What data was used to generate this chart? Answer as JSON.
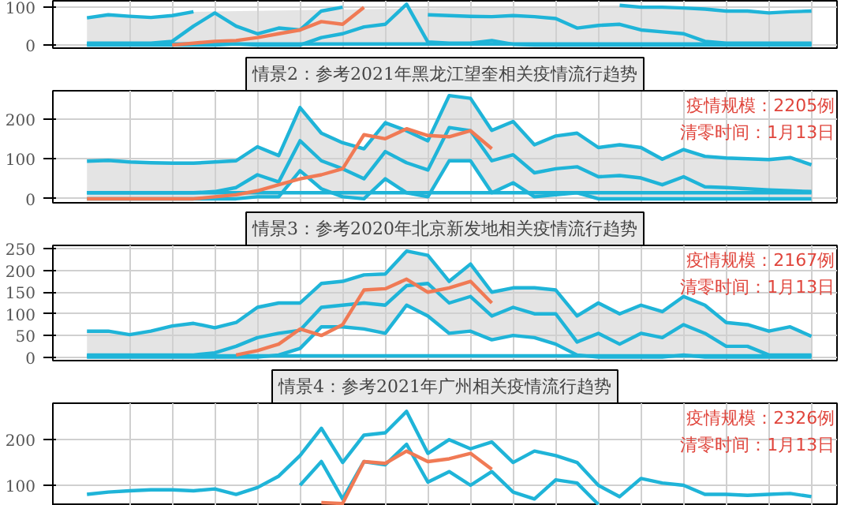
{
  "chart_data": [
    {
      "type": "line",
      "categories": [
        null,
        null,
        null,
        null,
        null,
        null,
        null,
        null,
        null,
        null,
        null,
        null,
        null,
        null,
        null,
        null,
        null,
        null,
        null,
        null,
        null,
        null,
        null,
        null,
        null,
        null,
        null,
        null,
        null,
        null,
        null,
        null,
        null,
        null,
        null
      ],
      "ylim": [
        -8,
        117
      ],
      "yticks": [
        0,
        100
      ],
      "grid": true,
      "tick_labels": "y",
      "series": [
        {
          "color": "#1fb4d8",
          "values": [
            3,
            3,
            3,
            3,
            3,
            3,
            3,
            3,
            3,
            3,
            3,
            3,
            3,
            3,
            3,
            3,
            3,
            3,
            3,
            3,
            3,
            3,
            3,
            3,
            3,
            3,
            3,
            3,
            3,
            3,
            3,
            3,
            3,
            3,
            3
          ]
        },
        {
          "color": "#1fb4d8",
          "values": [
            72,
            80,
            76,
            73,
            78,
            88,
            null,
            null,
            null,
            null,
            null,
            null,
            null,
            null,
            null,
            null,
            null,
            null,
            null,
            null,
            null,
            null,
            null,
            null,
            null,
            105,
            100,
            100,
            98,
            95,
            90,
            90,
            85,
            88,
            90
          ]
        },
        {
          "color": "#1fb4d8",
          "values": [
            0,
            0,
            0,
            0,
            0,
            0,
            0,
            3,
            0,
            0,
            0,
            20,
            30,
            48,
            55,
            108,
            8,
            5,
            5,
            12,
            2,
            0,
            0,
            0,
            0,
            0,
            0,
            0,
            0,
            0,
            0,
            0,
            0,
            0,
            0
          ]
        },
        {
          "color": "#1fb4d8",
          "values": [
            5,
            5,
            5,
            5,
            10,
            50,
            85,
            50,
            30,
            45,
            40,
            90,
            100,
            null,
            null,
            null,
            80,
            78,
            76,
            75,
            78,
            75,
            70,
            45,
            52,
            55,
            40,
            35,
            30,
            10,
            5,
            5,
            5,
            5,
            5
          ],
          "lower": [
            0,
            0,
            0,
            0,
            0,
            0,
            null,
            null,
            null,
            null,
            null,
            null,
            null,
            null,
            null,
            null,
            null,
            null,
            null,
            null,
            null,
            null,
            null,
            null,
            null,
            0,
            0,
            0,
            0,
            0,
            0,
            0,
            0,
            0,
            0
          ],
          "upper": [
            72,
            80,
            76,
            73,
            78,
            88,
            null,
            null,
            null,
            null,
            null,
            null,
            null,
            null,
            null,
            null,
            null,
            null,
            null,
            null,
            null,
            null,
            null,
            null,
            null,
            105,
            100,
            100,
            98,
            95,
            90,
            90,
            85,
            88,
            90
          ]
        },
        {
          "color": "#f07a55",
          "values": [
            null,
            null,
            null,
            null,
            0,
            5,
            10,
            12,
            20,
            30,
            40,
            62,
            55,
            100,
            null,
            null,
            null,
            null,
            null,
            null,
            null,
            null,
            null,
            null,
            null,
            null,
            null,
            null,
            null,
            null,
            null,
            null,
            null,
            null,
            null
          ]
        }
      ]
    },
    {
      "type": "line",
      "title": "情景2：参考2021年黑龙江望奎相关疫情流行趋势",
      "categories": [
        null,
        null,
        null,
        null,
        null,
        null,
        null,
        null,
        null,
        null,
        null,
        null,
        null,
        null,
        null,
        null,
        null,
        null,
        null,
        null,
        null,
        null,
        null,
        null,
        null,
        null,
        null,
        null,
        null,
        null,
        null,
        null,
        null,
        null,
        null
      ],
      "ylim": [
        -10,
        270
      ],
      "yticks": [
        0,
        100,
        200
      ],
      "grid": true,
      "tick_labels": "y",
      "annotations": [
        "疫情规模：2205例",
        "清零时间：1月13日"
      ],
      "series": [
        {
          "color": "#1fb4d8",
          "values": [
            15,
            15,
            15,
            15,
            15,
            15,
            15,
            15,
            15,
            15,
            15,
            15,
            15,
            15,
            15,
            15,
            15,
            15,
            15,
            15,
            15,
            15,
            15,
            15,
            15,
            15,
            15,
            15,
            15,
            15,
            15,
            15,
            15,
            15,
            15
          ]
        },
        {
          "color": "#1fb4d8",
          "values": [
            94,
            96,
            92,
            90,
            89,
            89,
            92,
            95,
            130,
            108,
            228,
            164,
            140,
            125,
            190,
            170,
            145,
            258,
            251,
            171,
            193,
            135,
            157,
            164,
            128,
            135,
            128,
            99,
            123,
            106,
            102,
            100,
            98,
            103,
            85
          ]
        },
        {
          "color": "#1fb4d8",
          "values": [
            0,
            0,
            0,
            0,
            0,
            0,
            0,
            0,
            5,
            5,
            70,
            25,
            5,
            0,
            50,
            15,
            5,
            95,
            95,
            15,
            40,
            5,
            10,
            15,
            0,
            0,
            0,
            0,
            0,
            0,
            0,
            0,
            0,
            0,
            0
          ]
        },
        {
          "color": "#1fb4d8",
          "values": [
            15,
            15,
            15,
            15,
            15,
            15,
            18,
            28,
            60,
            42,
            145,
            95,
            75,
            50,
            118,
            90,
            72,
            178,
            170,
            95,
            110,
            65,
            75,
            80,
            55,
            58,
            52,
            35,
            55,
            30,
            28,
            25,
            22,
            20,
            18
          ],
          "lower": [
            0,
            0,
            0,
            0,
            0,
            0,
            0,
            0,
            5,
            5,
            70,
            25,
            5,
            0,
            50,
            15,
            5,
            95,
            95,
            15,
            40,
            5,
            10,
            15,
            0,
            0,
            0,
            0,
            0,
            0,
            0,
            0,
            0,
            0,
            0
          ],
          "upper": [
            94,
            96,
            92,
            90,
            89,
            89,
            92,
            95,
            130,
            108,
            228,
            164,
            140,
            125,
            190,
            170,
            145,
            258,
            251,
            171,
            193,
            135,
            157,
            164,
            128,
            135,
            128,
            99,
            123,
            106,
            102,
            100,
            98,
            103,
            85
          ]
        },
        {
          "color": "#f07a55",
          "values": [
            0,
            0,
            0,
            0,
            0,
            0,
            5,
            10,
            20,
            35,
            50,
            60,
            75,
            160,
            150,
            175,
            158,
            155,
            170,
            125,
            null,
            null,
            null,
            null,
            null,
            null,
            null,
            null,
            null,
            null,
            null,
            null,
            null,
            null,
            null
          ]
        }
      ]
    },
    {
      "type": "line",
      "title": "情景3：参考2020年北京新发地相关疫情流行趋势",
      "categories": [
        null,
        null,
        null,
        null,
        null,
        null,
        null,
        null,
        null,
        null,
        null,
        null,
        null,
        null,
        null,
        null,
        null,
        null,
        null,
        null,
        null,
        null,
        null,
        null,
        null,
        null,
        null,
        null,
        null,
        null,
        null,
        null,
        null,
        null,
        null
      ],
      "ylim": [
        -8,
        258
      ],
      "yticks": [
        0,
        50,
        100,
        150,
        200,
        250
      ],
      "grid": true,
      "tick_labels": "y",
      "annotations": [
        "疫情规模：2167例",
        "清零时间：1月13日"
      ],
      "series": [
        {
          "color": "#1fb4d8",
          "values": [
            3,
            3,
            3,
            3,
            3,
            3,
            3,
            3,
            3,
            3,
            3,
            3,
            3,
            3,
            3,
            3,
            3,
            3,
            3,
            3,
            3,
            3,
            3,
            3,
            3,
            3,
            3,
            3,
            3,
            3,
            3,
            3,
            3,
            3,
            3
          ]
        },
        {
          "color": "#1fb4d8",
          "values": [
            60,
            60,
            52,
            60,
            72,
            78,
            68,
            80,
            115,
            125,
            125,
            170,
            175,
            190,
            192,
            245,
            235,
            175,
            215,
            150,
            160,
            160,
            155,
            95,
            125,
            100,
            120,
            105,
            140,
            120,
            80,
            75,
            60,
            70,
            48
          ]
        },
        {
          "color": "#1fb4d8",
          "values": [
            0,
            0,
            0,
            0,
            0,
            0,
            0,
            0,
            0,
            5,
            20,
            70,
            70,
            65,
            55,
            120,
            95,
            55,
            60,
            40,
            50,
            45,
            30,
            5,
            0,
            0,
            0,
            0,
            5,
            0,
            0,
            0,
            0,
            0,
            0
          ]
        },
        {
          "color": "#1fb4d8",
          "values": [
            5,
            5,
            5,
            5,
            5,
            5,
            10,
            25,
            45,
            55,
            62,
            115,
            120,
            125,
            120,
            165,
            170,
            125,
            140,
            95,
            115,
            100,
            100,
            35,
            55,
            30,
            55,
            45,
            75,
            55,
            25,
            25,
            5,
            5,
            5
          ],
          "lower": [
            0,
            0,
            0,
            0,
            0,
            0,
            0,
            0,
            0,
            5,
            20,
            70,
            70,
            65,
            55,
            120,
            95,
            55,
            60,
            40,
            50,
            45,
            30,
            5,
            0,
            0,
            0,
            0,
            5,
            0,
            0,
            0,
            0,
            0,
            0
          ],
          "upper": [
            60,
            60,
            52,
            60,
            72,
            78,
            68,
            80,
            115,
            125,
            125,
            170,
            175,
            190,
            192,
            245,
            235,
            175,
            215,
            150,
            160,
            160,
            155,
            95,
            125,
            100,
            120,
            105,
            140,
            120,
            80,
            75,
            60,
            70,
            48
          ]
        },
        {
          "color": "#f07a55",
          "values": [
            null,
            null,
            null,
            null,
            null,
            null,
            null,
            5,
            15,
            30,
            65,
            50,
            75,
            155,
            158,
            180,
            150,
            160,
            175,
            125,
            null,
            null,
            null,
            null,
            null,
            null,
            null,
            null,
            null,
            null,
            null,
            null,
            null,
            null,
            null
          ]
        }
      ]
    },
    {
      "type": "line",
      "title": "情景4：参考2021年广州相关疫情流行趋势",
      "categories": [
        null,
        null,
        null,
        null,
        null,
        null,
        null,
        null,
        null,
        null,
        null,
        null,
        null,
        null,
        null,
        null,
        null,
        null,
        null,
        null,
        null,
        null,
        null,
        null,
        null,
        null,
        null,
        null,
        null,
        null,
        null,
        null,
        null,
        null,
        null
      ],
      "ylim": [
        55,
        280
      ],
      "yticks": [
        100,
        200
      ],
      "grid": true,
      "tick_labels": "y",
      "annotations": [
        "疫情规模：2326例",
        "清零时间：1月13日"
      ],
      "series": [
        {
          "color": "#1fb4d8",
          "values": [
            80,
            85,
            88,
            90,
            90,
            88,
            92,
            80,
            95,
            120,
            165,
            225,
            150,
            210,
            215,
            262,
            170,
            200,
            180,
            195,
            150,
            175,
            165,
            150,
            100,
            75,
            115,
            105,
            100,
            80,
            80,
            78,
            80,
            82,
            75
          ]
        },
        {
          "color": "#1fb4d8",
          "values": [
            null,
            null,
            null,
            null,
            null,
            null,
            null,
            null,
            null,
            null,
            100,
            152,
            70,
            152,
            145,
            190,
            107,
            130,
            100,
            130,
            85,
            70,
            112,
            105,
            58,
            null,
            null,
            null,
            null,
            null,
            null,
            null,
            null,
            null,
            null
          ]
        },
        {
          "color": "#f07a55",
          "values": [
            null,
            null,
            null,
            null,
            null,
            null,
            null,
            null,
            null,
            null,
            null,
            62,
            60,
            152,
            148,
            175,
            152,
            158,
            170,
            135,
            null,
            null,
            null,
            null,
            null,
            null,
            null,
            null,
            null,
            null,
            null,
            null,
            null,
            null,
            null
          ]
        }
      ]
    }
  ]
}
